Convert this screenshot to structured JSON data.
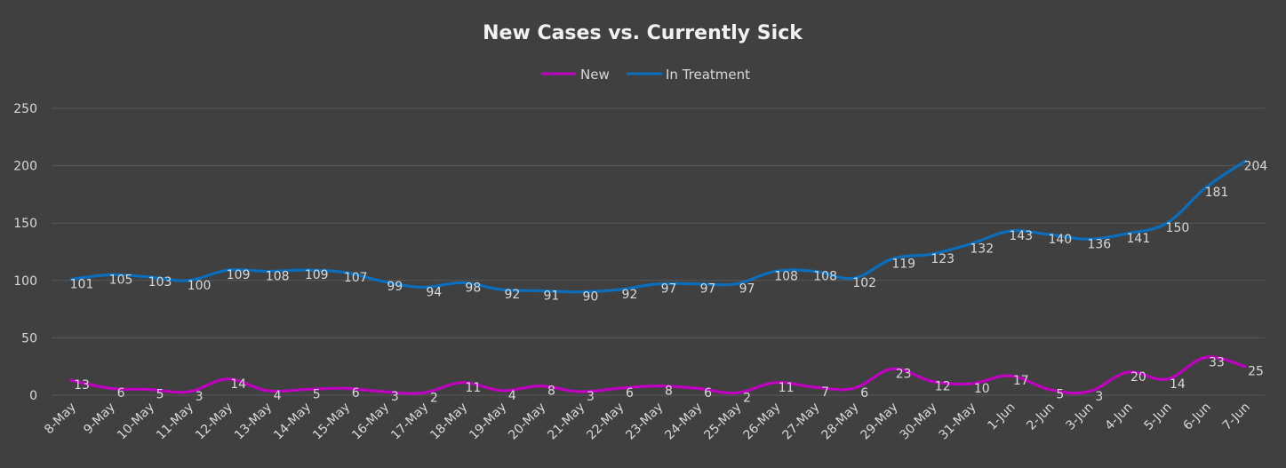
{
  "chart_data": {
    "type": "line",
    "title": "New Cases vs. Currently Sick",
    "xlabel": "",
    "ylabel": "",
    "ylim": [
      0,
      250
    ],
    "yticks": [
      0,
      50,
      100,
      150,
      200,
      250
    ],
    "grid": true,
    "legend_position": "top-center",
    "categories": [
      "8-May",
      "9-May",
      "10-May",
      "11-May",
      "12-May",
      "13-May",
      "14-May",
      "15-May",
      "16-May",
      "17-May",
      "18-May",
      "19-May",
      "20-May",
      "21-May",
      "22-May",
      "23-May",
      "24-May",
      "25-May",
      "26-May",
      "27-May",
      "28-May",
      "29-May",
      "30-May",
      "31-May",
      "1-Jun",
      "2-Jun",
      "3-Jun",
      "4-Jun",
      "5-Jun",
      "6-Jun",
      "7-Jun"
    ],
    "series": [
      {
        "name": "New",
        "color": "#c000c0",
        "values": [
          13,
          6,
          5,
          3,
          14,
          4,
          5,
          6,
          3,
          2,
          11,
          4,
          8,
          3,
          6,
          8,
          6,
          2,
          11,
          7,
          6,
          23,
          12,
          10,
          17,
          5,
          3,
          20,
          14,
          33,
          25
        ]
      },
      {
        "name": "In Treatment",
        "color": "#0a6ebd",
        "values": [
          101,
          105,
          103,
          100,
          109,
          108,
          109,
          107,
          99,
          94,
          98,
          92,
          91,
          90,
          92,
          97,
          97,
          97,
          108,
          108,
          102,
          119,
          123,
          132,
          143,
          140,
          136,
          141,
          150,
          181,
          204
        ]
      }
    ]
  },
  "colors": {
    "background": "#404040",
    "grid": "#595959",
    "text": "#d9d9d9",
    "title": "#f2f2f2"
  }
}
